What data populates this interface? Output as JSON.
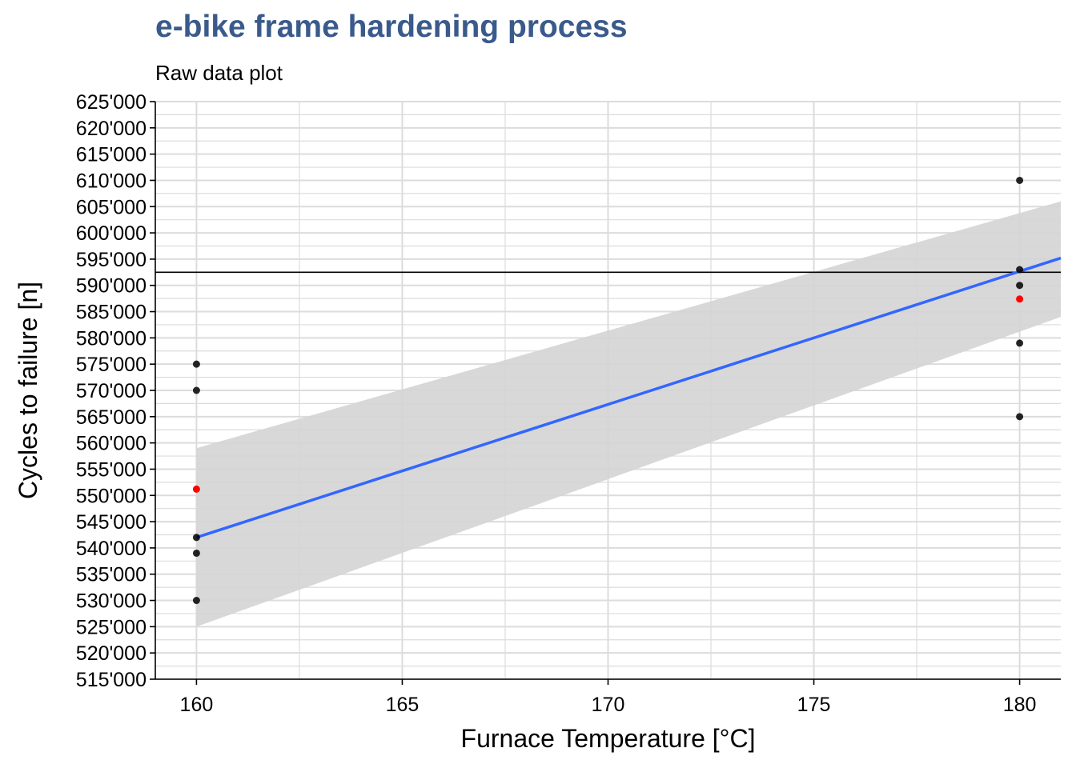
{
  "chart_data": {
    "type": "scatter",
    "title": "e-bike frame hardening process",
    "subtitle": "Raw data plot",
    "xlabel": "Furnace Temperature [°C]",
    "ylabel": "Cycles to failure [n]",
    "xlim": [
      159,
      181
    ],
    "ylim": [
      515000,
      625000
    ],
    "x_ticks": [
      160,
      165,
      170,
      175,
      180
    ],
    "x_tick_labels": [
      "160",
      "165",
      "170",
      "175",
      "180"
    ],
    "y_ticks": [
      515000,
      520000,
      525000,
      530000,
      535000,
      540000,
      545000,
      550000,
      555000,
      560000,
      565000,
      570000,
      575000,
      580000,
      585000,
      590000,
      595000,
      600000,
      605000,
      610000,
      615000,
      620000,
      625000
    ],
    "y_tick_labels": [
      "515'000",
      "520'000",
      "525'000",
      "530'000",
      "535'000",
      "540'000",
      "545'000",
      "550'000",
      "555'000",
      "560'000",
      "565'000",
      "570'000",
      "575'000",
      "580'000",
      "585'000",
      "590'000",
      "595'000",
      "600'000",
      "605'000",
      "610'000",
      "615'000",
      "620'000",
      "625'000"
    ],
    "grid": true,
    "points": [
      {
        "x": 160,
        "y": 575000
      },
      {
        "x": 160,
        "y": 570000
      },
      {
        "x": 160,
        "y": 542000
      },
      {
        "x": 160,
        "y": 539000
      },
      {
        "x": 160,
        "y": 530000
      },
      {
        "x": 180,
        "y": 610000
      },
      {
        "x": 180,
        "y": 593000
      },
      {
        "x": 180,
        "y": 590000
      },
      {
        "x": 180,
        "y": 579000
      },
      {
        "x": 180,
        "y": 565000
      }
    ],
    "mean_points": [
      {
        "x": 160,
        "y": 551200
      },
      {
        "x": 180,
        "y": 587400
      }
    ],
    "hline": 592500,
    "fit_line": {
      "x0": 160,
      "y0": 542000,
      "x1": 181,
      "y1": 595200
    },
    "ci_band": {
      "x0": 160,
      "lower0": 525000,
      "upper0": 559000,
      "x1": 181,
      "lower1": 584000,
      "upper1": 606000
    },
    "colors": {
      "title": "#3a5a8c",
      "points": "#000000",
      "mean_points": "#ff0000",
      "fit_line": "#3366ff",
      "ci_band": "#d4d4d4",
      "grid": "#dcdcdc",
      "hline": "#000000"
    }
  }
}
